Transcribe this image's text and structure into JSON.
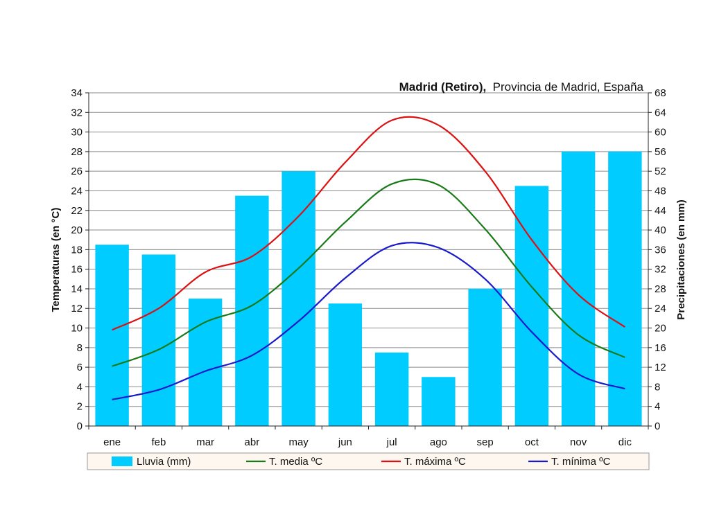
{
  "chart_data": {
    "type": "bar",
    "title_bold": "Madrid (Retiro),",
    "title_rest": "Provincia de Madrid, España",
    "categories": [
      "ene",
      "feb",
      "mar",
      "abr",
      "may",
      "jun",
      "jul",
      "ago",
      "sep",
      "oct",
      "nov",
      "dic"
    ],
    "ylabel_left": "Temperaturas (en °C)",
    "ylabel_right": "Precipitaciones (en mm)",
    "ylim_left": [
      0,
      34
    ],
    "ylim_right": [
      0,
      68
    ],
    "left_ticks": [
      "0",
      "2",
      "4",
      "6",
      "8",
      "10",
      "12",
      "14",
      "16",
      "18",
      "20",
      "22",
      "24",
      "26",
      "28",
      "30",
      "32",
      "34"
    ],
    "right_ticks": [
      "0",
      "4",
      "8",
      "12",
      "16",
      "20",
      "24",
      "28",
      "32",
      "36",
      "40",
      "44",
      "48",
      "52",
      "56",
      "60",
      "64",
      "68"
    ],
    "grid": true,
    "legend_position": "bottom",
    "bar_series": {
      "name": "Lluvia (mm)",
      "axis": "right",
      "color": "#00ccff",
      "values": [
        37,
        35,
        26,
        47,
        52,
        25,
        15,
        10,
        28,
        49,
        56,
        56
      ]
    },
    "series": [
      {
        "name": "T. media ºC",
        "axis": "left",
        "color": "#1a7a1a",
        "values": [
          6.1,
          7.8,
          10.6,
          12.3,
          16.1,
          20.8,
          24.7,
          24.6,
          20.1,
          14.2,
          9.3,
          7.0
        ]
      },
      {
        "name": "T. máxima ºC",
        "axis": "left",
        "color": "#dd1111",
        "values": [
          9.8,
          12.0,
          15.7,
          17.3,
          21.4,
          26.9,
          31.2,
          30.7,
          26.0,
          19.0,
          13.4,
          10.1
        ]
      },
      {
        "name": "T. mínima ºC",
        "axis": "left",
        "color": "#1a1acc",
        "values": [
          2.7,
          3.7,
          5.6,
          7.2,
          10.7,
          15.1,
          18.4,
          18.2,
          15.0,
          9.6,
          5.3,
          3.8
        ]
      }
    ]
  }
}
